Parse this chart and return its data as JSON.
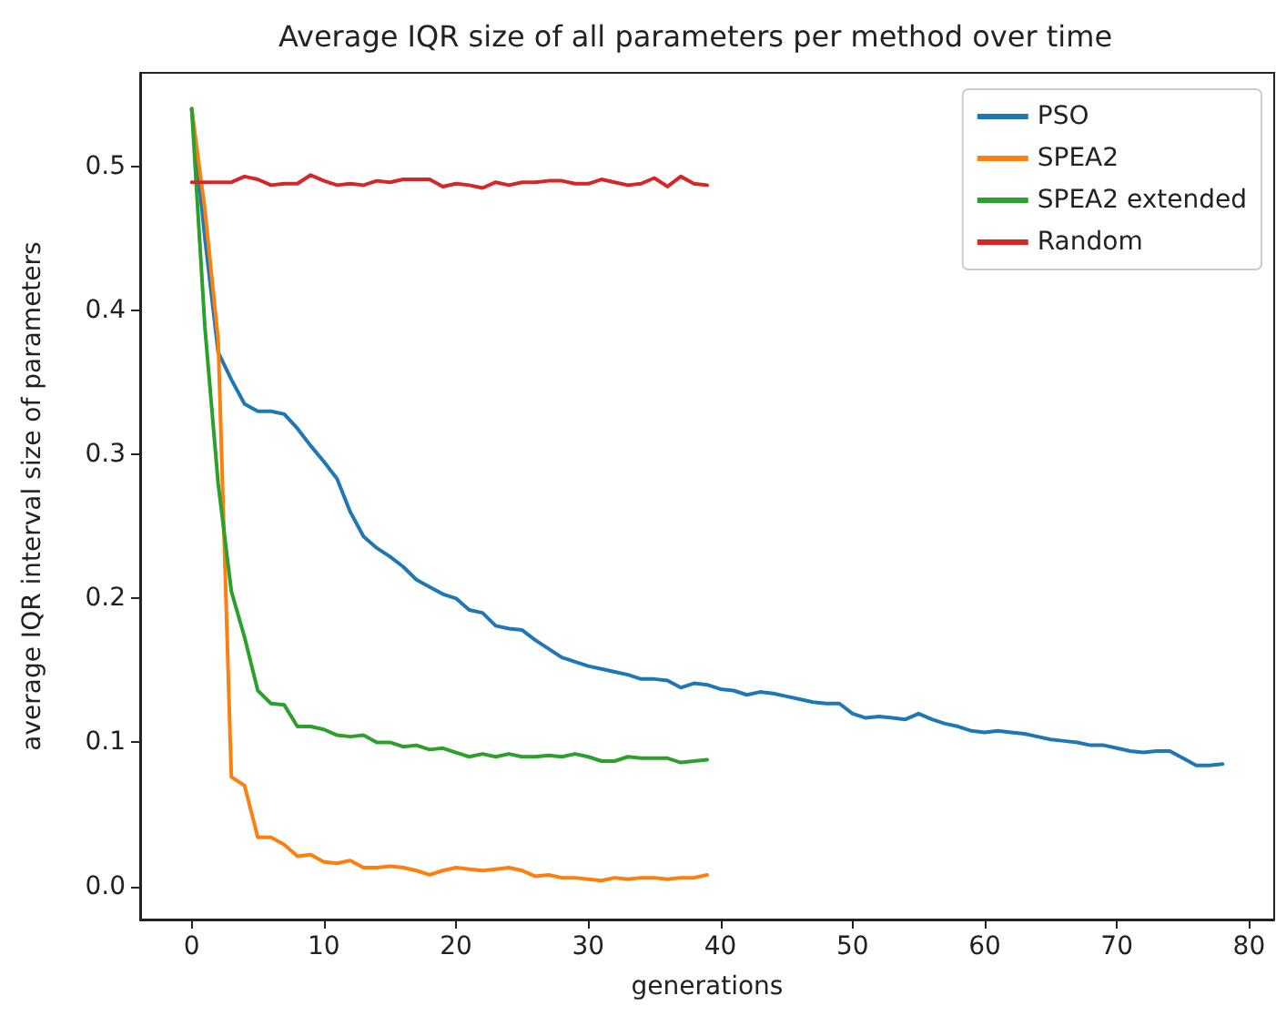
{
  "chart_data": {
    "type": "line",
    "title": "Average IQR size of all parameters per method over time",
    "xlabel": "generations",
    "ylabel": "average IQR interval size of parameters",
    "x": [
      0,
      1,
      2,
      3,
      4,
      5,
      6,
      7,
      8,
      9,
      10,
      11,
      12,
      13,
      14,
      15,
      16,
      17,
      18,
      19,
      20,
      21,
      22,
      23,
      24,
      25,
      26,
      27,
      28,
      29,
      30,
      31,
      32,
      33,
      34,
      35,
      36,
      37,
      38,
      39,
      40,
      41,
      42,
      43,
      44,
      45,
      46,
      47,
      48,
      49,
      50,
      51,
      52,
      53,
      54,
      55,
      56,
      57,
      58,
      59,
      60,
      61,
      62,
      63,
      64,
      65,
      66,
      67,
      68,
      69,
      70,
      71,
      72,
      73,
      74,
      75,
      76,
      77,
      78
    ],
    "series": [
      {
        "name": "PSO",
        "color": "#1f77b4",
        "values": [
          0.54,
          0.45,
          0.371,
          0.352,
          0.335,
          0.33,
          0.33,
          0.328,
          0.318,
          0.306,
          0.295,
          0.283,
          0.26,
          0.243,
          0.235,
          0.229,
          0.222,
          0.213,
          0.208,
          0.203,
          0.2,
          0.192,
          0.19,
          0.181,
          0.179,
          0.178,
          0.171,
          0.165,
          0.159,
          0.156,
          0.153,
          0.151,
          0.149,
          0.147,
          0.144,
          0.144,
          0.143,
          0.138,
          0.141,
          0.14,
          0.137,
          0.136,
          0.133,
          0.135,
          0.134,
          0.132,
          0.13,
          0.128,
          0.127,
          0.127,
          0.12,
          0.117,
          0.118,
          0.117,
          0.116,
          0.12,
          0.116,
          0.113,
          0.111,
          0.108,
          0.107,
          0.108,
          0.107,
          0.106,
          0.104,
          0.102,
          0.101,
          0.1,
          0.098,
          0.098,
          0.096,
          0.094,
          0.093,
          0.094,
          0.094,
          0.089,
          0.084,
          0.084,
          0.085
        ]
      },
      {
        "name": "SPEA2",
        "color": "#ff7f0e",
        "x": [
          0,
          1,
          2,
          3,
          4,
          5,
          6,
          7,
          8,
          9,
          10,
          11,
          12,
          13,
          14,
          15,
          16,
          17,
          18,
          19,
          20,
          21,
          22,
          23,
          24,
          25,
          26,
          27,
          28,
          29,
          30,
          31,
          32,
          33,
          34,
          35,
          36,
          37,
          38,
          39
        ],
        "values": [
          0.54,
          0.47,
          0.38,
          0.076,
          0.07,
          0.034,
          0.034,
          0.029,
          0.021,
          0.022,
          0.017,
          0.016,
          0.018,
          0.013,
          0.013,
          0.014,
          0.013,
          0.011,
          0.008,
          0.011,
          0.013,
          0.012,
          0.011,
          0.012,
          0.013,
          0.011,
          0.007,
          0.008,
          0.006,
          0.006,
          0.005,
          0.004,
          0.006,
          0.005,
          0.006,
          0.006,
          0.005,
          0.006,
          0.006,
          0.008
        ]
      },
      {
        "name": "SPEA2 extended",
        "color": "#2ca02c",
        "x": [
          0,
          1,
          2,
          3,
          4,
          5,
          6,
          7,
          8,
          9,
          10,
          11,
          12,
          13,
          14,
          15,
          16,
          17,
          18,
          19,
          20,
          21,
          22,
          23,
          24,
          25,
          26,
          27,
          28,
          29,
          30,
          31,
          32,
          33,
          34,
          35,
          36,
          37,
          38,
          39
        ],
        "values": [
          0.54,
          0.388,
          0.28,
          0.205,
          0.173,
          0.136,
          0.127,
          0.126,
          0.111,
          0.111,
          0.109,
          0.105,
          0.104,
          0.105,
          0.1,
          0.1,
          0.097,
          0.098,
          0.095,
          0.096,
          0.093,
          0.09,
          0.092,
          0.09,
          0.092,
          0.09,
          0.09,
          0.091,
          0.09,
          0.092,
          0.09,
          0.087,
          0.087,
          0.09,
          0.089,
          0.089,
          0.089,
          0.086,
          0.087,
          0.088
        ]
      },
      {
        "name": "Random",
        "color": "#d62728",
        "x": [
          0,
          1,
          2,
          3,
          4,
          5,
          6,
          7,
          8,
          9,
          10,
          11,
          12,
          13,
          14,
          15,
          16,
          17,
          18,
          19,
          20,
          21,
          22,
          23,
          24,
          25,
          26,
          27,
          28,
          29,
          30,
          31,
          32,
          33,
          34,
          35,
          36,
          37,
          38,
          39
        ],
        "values": [
          0.489,
          0.489,
          0.489,
          0.489,
          0.493,
          0.491,
          0.487,
          0.488,
          0.488,
          0.494,
          0.49,
          0.487,
          0.488,
          0.487,
          0.49,
          0.489,
          0.491,
          0.491,
          0.491,
          0.486,
          0.488,
          0.487,
          0.485,
          0.489,
          0.487,
          0.489,
          0.489,
          0.49,
          0.49,
          0.488,
          0.488,
          0.491,
          0.489,
          0.487,
          0.488,
          0.492,
          0.486,
          0.493,
          0.488,
          0.487
        ]
      }
    ],
    "xlim": [
      -3.9,
      81.9
    ],
    "xticks": [
      0,
      10,
      20,
      30,
      40,
      50,
      60,
      70,
      80
    ],
    "ylim": [
      -0.023,
      0.565
    ],
    "yticks": [
      {
        "value": 0,
        "label": "0.0"
      },
      {
        "value": 0.1,
        "label": "0.1"
      },
      {
        "value": 0.2,
        "label": "0.2"
      },
      {
        "value": 0.3,
        "label": "0.3"
      },
      {
        "value": 0.4,
        "label": "0.4"
      },
      {
        "value": 0.5,
        "label": "0.5"
      }
    ],
    "grid": false,
    "legend": "top right",
    "marker": "none",
    "line_style": "solid"
  }
}
